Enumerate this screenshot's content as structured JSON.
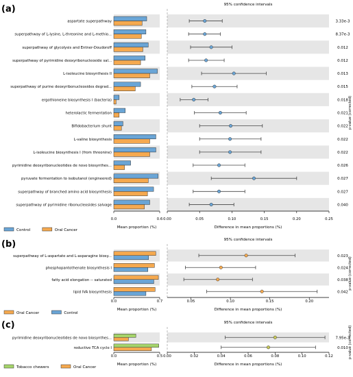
{
  "chart_data": [
    {
      "type": "bar",
      "panel": "(a)",
      "ci_title": "95% confidence intervals",
      "xlabel_left": "Mean proportion (%)",
      "xlabel_right": "Difference in mean proportions (%)",
      "pvalue_label": "p-value (corrected)",
      "left_ticks": [
        "0.0",
        "0.6"
      ],
      "left_xlim": [
        0,
        0.6
      ],
      "right_ticks": [
        "0.00",
        "0.05",
        "0.10",
        "0.15",
        "0.20",
        "0.25"
      ],
      "right_xlim": [
        0,
        0.25
      ],
      "legend": [
        {
          "name": "Control",
          "color": "#6aa5d6"
        },
        {
          "name": "Oral Cancer",
          "color": "#f5a94f"
        }
      ],
      "categories": [
        "aspartate superpathway",
        "superpathway of L-lysine, L-threonine and L-methio...",
        "superpathway of glycolysis and Entner-Doudoroff",
        "superpathway of pyrimidine deoxyribonucleoside sal...",
        "L-isoleucine biosynthesis II",
        "superpathway of purine deoxyribonucleosides degrad...",
        "ergothioneine biosynthesis I (bacteria)",
        "heterolactic fermentation",
        "Bifidobacterium shunt",
        "L-valine biosynthesis",
        "L-isoleucine biosynthesis I (from threonine)",
        "pyrimidine deoxyribonucleotides de novo biosynthes...",
        "pyruvate fermentation to isobutanol (engineered)",
        "superpathway of branched amino acid biosynthesis",
        "superpathway of pyrimidine ribonucleosides salvage"
      ],
      "series": [
        {
          "name": "Control",
          "color": "#6aa5d6",
          "values": [
            0.43,
            0.42,
            0.45,
            0.41,
            0.57,
            0.35,
            0.07,
            0.15,
            0.12,
            0.55,
            0.55,
            0.22,
            0.58,
            0.52,
            0.47
          ]
        },
        {
          "name": "Oral Cancer",
          "color": "#f5a94f",
          "values": [
            0.37,
            0.36,
            0.38,
            0.35,
            0.47,
            0.28,
            0.03,
            0.07,
            0.1,
            0.47,
            0.47,
            0.14,
            0.45,
            0.44,
            0.4
          ]
        }
      ],
      "diff": [
        {
          "mean": 0.058,
          "low": 0.034,
          "high": 0.085
        },
        {
          "mean": 0.058,
          "low": 0.033,
          "high": 0.082
        },
        {
          "mean": 0.068,
          "low": 0.036,
          "high": 0.1
        },
        {
          "mean": 0.06,
          "low": 0.033,
          "high": 0.088
        },
        {
          "mean": 0.103,
          "low": 0.053,
          "high": 0.153
        },
        {
          "mean": 0.073,
          "low": 0.038,
          "high": 0.108
        },
        {
          "mean": 0.041,
          "low": 0.02,
          "high": 0.063
        },
        {
          "mean": 0.082,
          "low": 0.042,
          "high": 0.122
        },
        {
          "mean": 0.098,
          "low": 0.05,
          "high": 0.147
        },
        {
          "mean": 0.097,
          "low": 0.05,
          "high": 0.145
        },
        {
          "mean": 0.097,
          "low": 0.05,
          "high": 0.145
        },
        {
          "mean": 0.08,
          "low": 0.04,
          "high": 0.12
        },
        {
          "mean": 0.134,
          "low": 0.068,
          "high": 0.2
        },
        {
          "mean": 0.08,
          "low": 0.04,
          "high": 0.12
        },
        {
          "mean": 0.068,
          "low": 0.034,
          "high": 0.103
        }
      ],
      "point_color": "#6aa5d6",
      "pvalues": [
        "3.33e-3",
        "8.37e-3",
        "0.012",
        "0.012",
        "0.013",
        "0.015",
        "0.018",
        "0.021",
        "0.022",
        "0.022",
        "0.022",
        "0.026",
        "0.027",
        "0.027",
        "0.040"
      ]
    },
    {
      "type": "bar",
      "panel": "(b)",
      "ci_title": "95% confidence intervals",
      "xlabel_left": "Mean proportion (%)",
      "xlabel_right": "Difference in mean proportions (%)",
      "pvalue_label": "p-value (corrected)",
      "left_ticks": [
        "0.0",
        "0.7"
      ],
      "left_xlim": [
        0,
        0.7
      ],
      "right_ticks": [
        "0.05",
        "0.10",
        "0.15",
        "0.20"
      ],
      "right_xlim": [
        0.02,
        0.225
      ],
      "legend": [
        {
          "name": "Oral Cancer",
          "color": "#f5a94f"
        },
        {
          "name": "Control",
          "color": "#6aa5d6"
        }
      ],
      "categories": [
        "superpathway of L-aspartate and L-asparagine biosy...",
        "phosphopantothenate biosynthesis I",
        "fatty acid elongation -- saturated",
        "lipid IVA biosynthesis"
      ],
      "series": [
        {
          "name": "Oral Cancer",
          "color": "#f5a94f",
          "values": [
            0.64,
            0.62,
            0.68,
            0.63
          ]
        },
        {
          "name": "Control",
          "color": "#6aa5d6",
          "values": [
            0.53,
            0.52,
            0.61,
            0.49
          ]
        }
      ],
      "diff": [
        {
          "mean": 0.12,
          "low": 0.06,
          "high": 0.182
        },
        {
          "mean": 0.088,
          "low": 0.043,
          "high": 0.132
        },
        {
          "mean": 0.084,
          "low": 0.041,
          "high": 0.128
        },
        {
          "mean": 0.14,
          "low": 0.07,
          "high": 0.21
        }
      ],
      "point_color": "#f5a94f",
      "pvalues": [
        "0.023",
        "0.024",
        "0.038",
        "0.042"
      ]
    },
    {
      "type": "bar",
      "panel": "(c)",
      "ci_title": "95% confidence intervals",
      "xlabel_left": "Mean proportion (%)",
      "xlabel_right": "Difference in mean proportions (%)",
      "pvalue_label": "p-value (corrected)",
      "left_ticks": [
        "0.0",
        "0.5"
      ],
      "left_xlim": [
        0,
        0.5
      ],
      "right_ticks": [
        "0.00",
        "0.02",
        "0.04",
        "0.06",
        "0.08",
        "0.10",
        "0.12"
      ],
      "right_xlim": [
        0,
        0.12
      ],
      "legend": [
        {
          "name": "Tobacco chewers",
          "color": "#a5d46a"
        },
        {
          "name": "Oral Cancer",
          "color": "#f5a94f"
        }
      ],
      "categories": [
        "pyrimidine deoxyribonucleotides de novo biosynthes...",
        "reductive TCA cycle I"
      ],
      "series": [
        {
          "name": "Tobacco chewers",
          "color": "#a5d46a",
          "values": [
            0.24,
            0.49
          ]
        },
        {
          "name": "Oral Cancer",
          "color": "#f5a94f",
          "values": [
            0.16,
            0.41
          ]
        }
      ],
      "diff": [
        {
          "mean": 0.08,
          "low": 0.043,
          "high": 0.117
        },
        {
          "mean": 0.075,
          "low": 0.04,
          "high": 0.11
        }
      ],
      "point_color": "#c8c85a",
      "pvalues": [
        "7.95e-3",
        "0.010"
      ]
    }
  ]
}
